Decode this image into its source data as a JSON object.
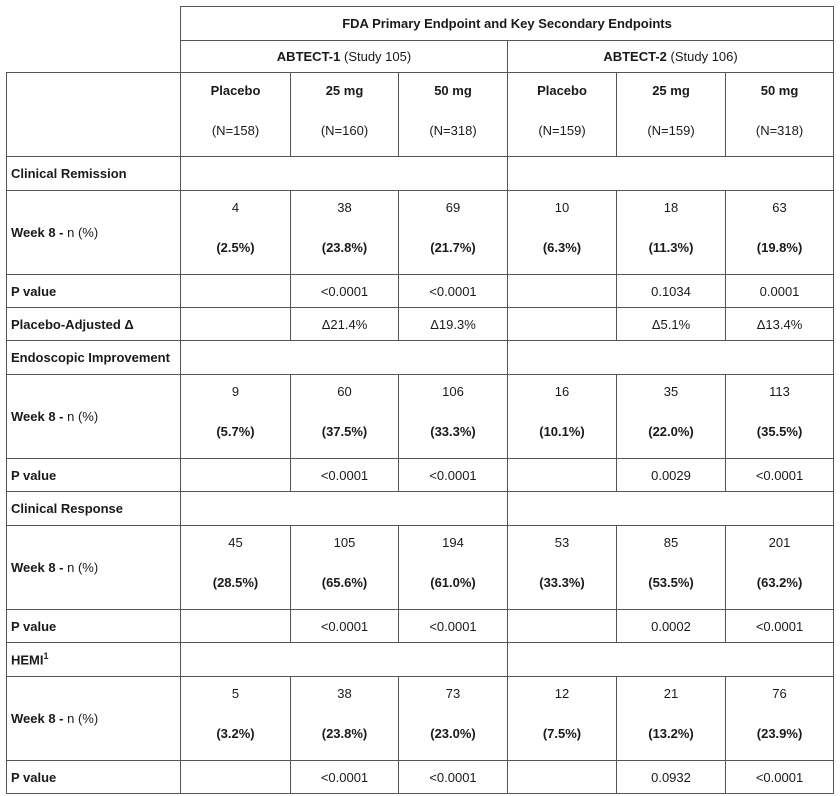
{
  "header": {
    "title": "FDA Primary Endpoint and Key Secondary Endpoints",
    "study1": {
      "name": "ABTECT-1",
      "sub": "(Study 105)"
    },
    "study2": {
      "name": "ABTECT-2",
      "sub": "(Study 106)"
    }
  },
  "arms": [
    {
      "name": "Placebo",
      "n": "(N=158)"
    },
    {
      "name": "25 mg",
      "n": "(N=160)"
    },
    {
      "name": "50 mg",
      "n": "(N=318)"
    },
    {
      "name": "Placebo",
      "n": "(N=159)"
    },
    {
      "name": "25 mg",
      "n": "(N=159)"
    },
    {
      "name": "50 mg",
      "n": "(N=318)"
    }
  ],
  "week_label": {
    "bold": "Week 8 -",
    "rest": "n (%)"
  },
  "p_label": "P value",
  "delta_label": "Placebo-Adjusted Δ",
  "sections": {
    "remission": {
      "title": "Clinical Remission",
      "counts": [
        "4",
        "38",
        "69",
        "10",
        "18",
        "63"
      ],
      "pcts": [
        "(2.5%)",
        "(23.8%)",
        "(21.7%)",
        "(6.3%)",
        "(11.3%)",
        "(19.8%)"
      ],
      "p": [
        "",
        "<0.0001",
        "<0.0001",
        "",
        "0.1034",
        "0.0001"
      ],
      "delta": [
        "",
        "Δ21.4%",
        "Δ19.3%",
        "",
        "Δ5.1%",
        "Δ13.4%"
      ]
    },
    "endoscopic": {
      "title": "Endoscopic Improvement",
      "counts": [
        "9",
        "60",
        "106",
        "16",
        "35",
        "113"
      ],
      "pcts": [
        "(5.7%)",
        "(37.5%)",
        "(33.3%)",
        "(10.1%)",
        "(22.0%)",
        "(35.5%)"
      ],
      "p": [
        "",
        "<0.0001",
        "<0.0001",
        "",
        "0.0029",
        "<0.0001"
      ]
    },
    "response": {
      "title": "Clinical Response",
      "counts": [
        "45",
        "105",
        "194",
        "53",
        "85",
        "201"
      ],
      "pcts": [
        "(28.5%)",
        "(65.6%)",
        "(61.0%)",
        "(33.3%)",
        "(53.5%)",
        "(63.2%)"
      ],
      "p": [
        "",
        "<0.0001",
        "<0.0001",
        "",
        "0.0002",
        "<0.0001"
      ]
    },
    "hemi": {
      "title": "HEMI",
      "footnote": "1",
      "counts": [
        "5",
        "38",
        "73",
        "12",
        "21",
        "76"
      ],
      "pcts": [
        "(3.2%)",
        "(23.8%)",
        "(23.0%)",
        "(7.5%)",
        "(13.2%)",
        "(23.9%)"
      ],
      "p": [
        "",
        "<0.0001",
        "<0.0001",
        "",
        "0.0932",
        "<0.0001"
      ]
    }
  }
}
